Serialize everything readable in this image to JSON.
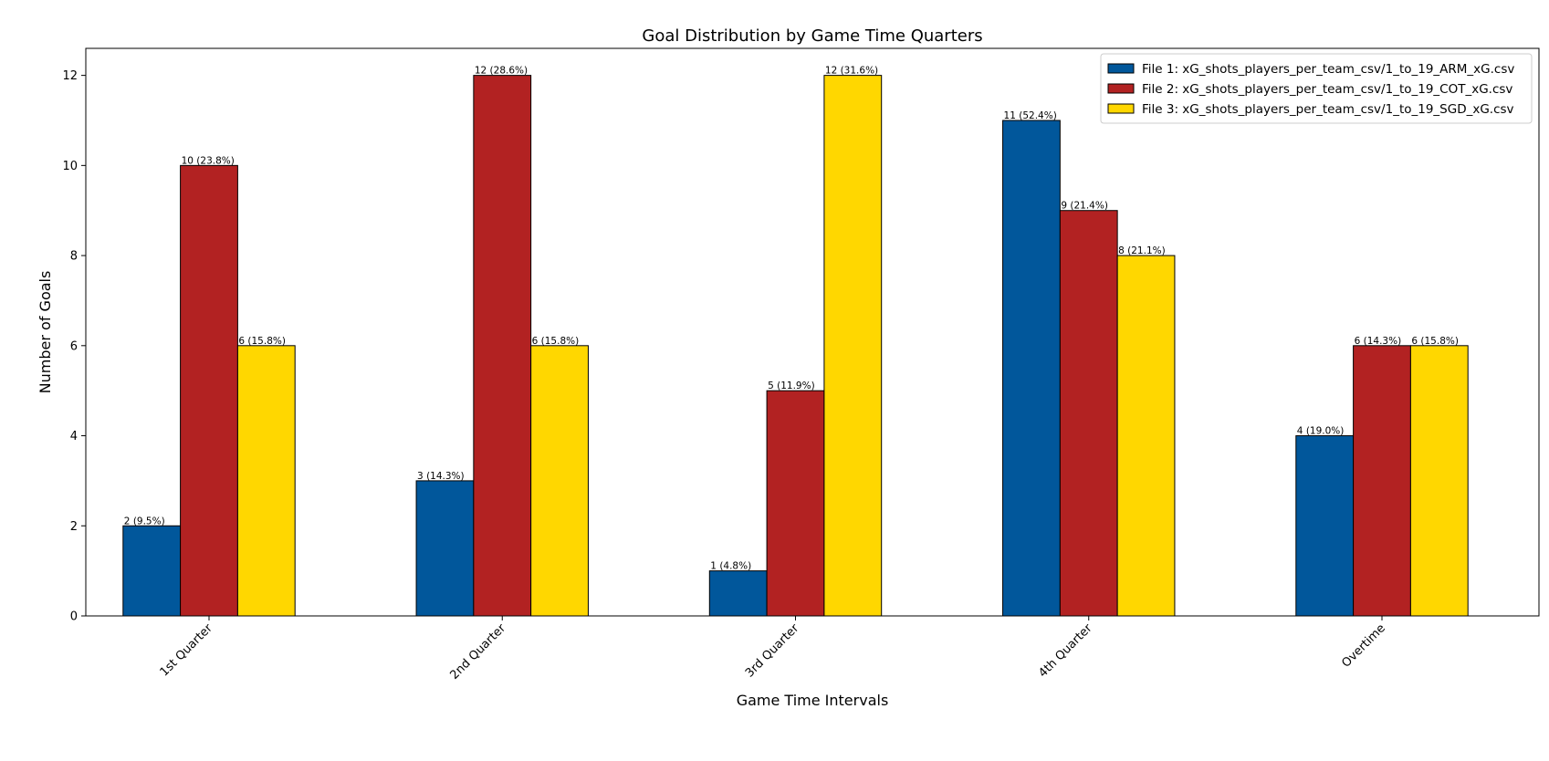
{
  "chart_data": {
    "type": "bar",
    "title": "Goal Distribution by Game Time Quarters",
    "xlabel": "Game Time Intervals",
    "ylabel": "Number of Goals",
    "categories": [
      "1st Quarter",
      "2nd Quarter",
      "3rd Quarter",
      "4th Quarter",
      "Overtime"
    ],
    "ylim": [
      0,
      12.6
    ],
    "yticks": [
      0,
      2,
      4,
      6,
      8,
      10,
      12
    ],
    "grid": false,
    "legend_position": "top-right",
    "series": [
      {
        "name": "File 1: xG_shots_players_per_team_csv/1_to_19_ARM_xG.csv",
        "color": "#01579b",
        "values": [
          2,
          3,
          1,
          11,
          4
        ],
        "labels": [
          "2 (9.5%)",
          "3 (14.3%)",
          "1 (4.8%)",
          "11 (52.4%)",
          "4 (19.0%)"
        ]
      },
      {
        "name": "File 2: xG_shots_players_per_team_csv/1_to_19_COT_xG.csv",
        "color": "#b22222",
        "values": [
          10,
          12,
          5,
          9,
          6
        ],
        "labels": [
          "10 (23.8%)",
          "12 (28.6%)",
          "5 (11.9%)",
          "9 (21.4%)",
          "6 (14.3%)"
        ]
      },
      {
        "name": "File 3: xG_shots_players_per_team_csv/1_to_19_SGD_xG.csv",
        "color": "#ffd700",
        "values": [
          6,
          6,
          12,
          8,
          6
        ],
        "labels": [
          "6 (15.8%)",
          "6 (15.8%)",
          "12 (31.6%)",
          "8 (21.1%)",
          "6 (15.8%)"
        ]
      }
    ]
  }
}
